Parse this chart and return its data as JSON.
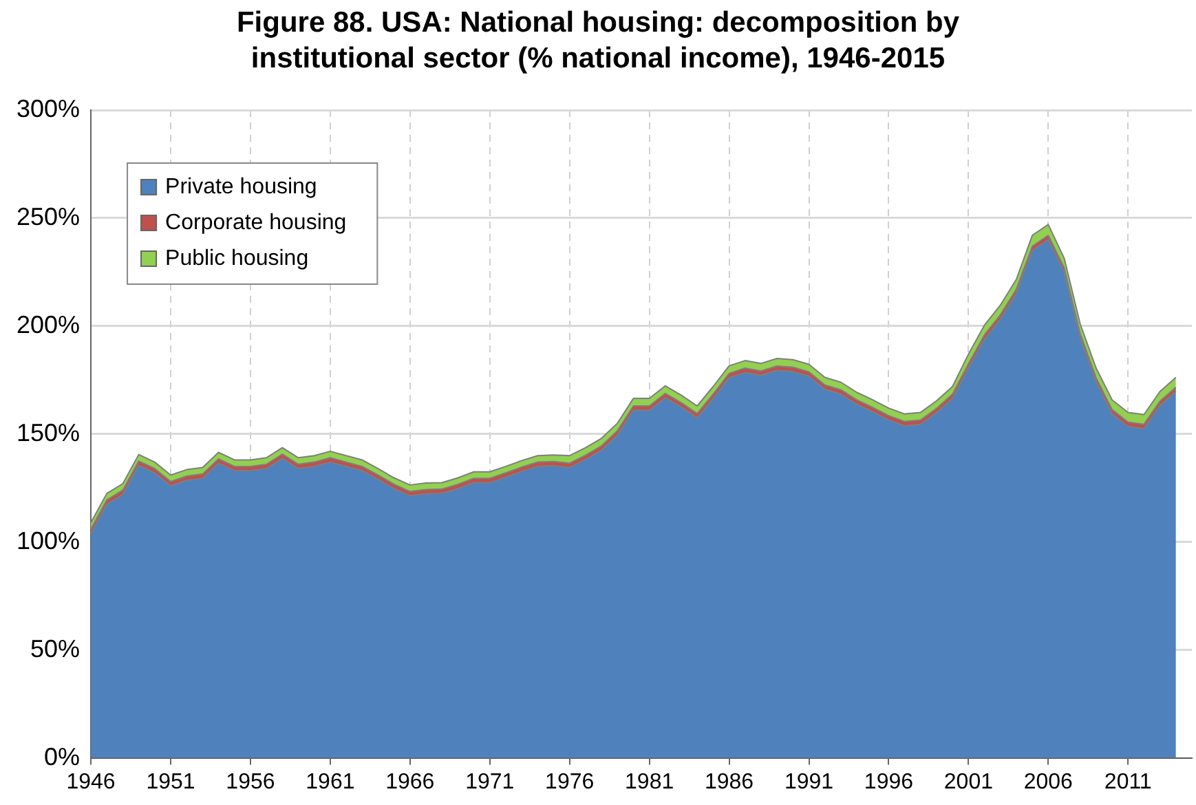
{
  "chart_data": {
    "type": "area",
    "stacked": true,
    "title": "Figure 88. USA: National housing: decomposition by institutional sector (% national income), 1946-2015",
    "categories": [
      "1946",
      null,
      null,
      null,
      null,
      "1951",
      null,
      null,
      null,
      null,
      "1956",
      null,
      null,
      null,
      null,
      "1961",
      null,
      null,
      null,
      null,
      "1966",
      null,
      null,
      null,
      null,
      "1971",
      null,
      null,
      null,
      null,
      "1976",
      null,
      null,
      null,
      null,
      "1981",
      null,
      null,
      null,
      null,
      "1986",
      null,
      null,
      null,
      null,
      "1991",
      null,
      null,
      null,
      null,
      "1996",
      null,
      null,
      null,
      null,
      "2001",
      null,
      null,
      null,
      null,
      "2006",
      null,
      null,
      null,
      null,
      "2011",
      null,
      null,
      null,
      null
    ],
    "series": [
      {
        "name": "Private housing",
        "color": "#4f81bd",
        "values": [
          104,
          117.5,
          122,
          135.5,
          132,
          126,
          128.5,
          129.5,
          136.5,
          133,
          133,
          134,
          138.7,
          134,
          135,
          137,
          135,
          133,
          129,
          124.7,
          121.4,
          122.3,
          122.5,
          124.7,
          127.5,
          127.5,
          130,
          132.7,
          135,
          135.3,
          134.5,
          138.2,
          142.5,
          149.5,
          161,
          161,
          166.8,
          162.5,
          157.5,
          166.5,
          176.1,
          178.5,
          177.2,
          179.5,
          178.9,
          176.8,
          170.7,
          168.5,
          163.8,
          160.3,
          156.5,
          153.8,
          154.5,
          159.9,
          166.5,
          180.5,
          193.9,
          203.2,
          215.1,
          235,
          240,
          224.9,
          194.5,
          174,
          159.3,
          153.5,
          152.5,
          163.2,
          169.7,
          null
        ]
      },
      {
        "name": "Corporate housing",
        "color": "#c0504d",
        "values": [
          2,
          2,
          2,
          2,
          2,
          2,
          2,
          2,
          2,
          2,
          2,
          2,
          2,
          2,
          2,
          2,
          2,
          2,
          2,
          2,
          2,
          2,
          2,
          2,
          2,
          2,
          2,
          2,
          2,
          2,
          2,
          2,
          2,
          2,
          2,
          2,
          2,
          2,
          2,
          2,
          2,
          2,
          2,
          2,
          2,
          2,
          2,
          2,
          2,
          2,
          2,
          2,
          2,
          2,
          2,
          2,
          2,
          2,
          2,
          2,
          2,
          2,
          2,
          2,
          2,
          2,
          2,
          2,
          2,
          null
        ]
      },
      {
        "name": "Public housing",
        "color": "#92d050",
        "values": [
          3,
          3,
          3,
          3,
          3,
          3,
          3,
          3,
          3,
          3,
          3,
          3,
          3,
          3,
          3,
          3,
          3,
          3,
          3,
          3,
          3,
          3,
          3,
          3,
          3,
          3,
          3,
          3,
          3,
          3,
          3.5,
          3.5,
          3.5,
          3.5,
          3.5,
          3.5,
          3.5,
          3.5,
          3.5,
          3.5,
          3.5,
          3.5,
          3.5,
          3.5,
          3.5,
          3.5,
          3.5,
          3.5,
          3.5,
          3.5,
          3.5,
          3.5,
          3.5,
          3.5,
          3.5,
          4.5,
          4.5,
          4.5,
          4.5,
          5,
          5,
          4.5,
          4.5,
          4.5,
          4.5,
          4.5,
          4.5,
          4.5,
          4.5,
          null
        ]
      }
    ],
    "ylim": [
      0,
      300
    ],
    "yticks": [
      {
        "value": 0,
        "label": "0%"
      },
      {
        "value": 50,
        "label": "50%"
      },
      {
        "value": 100,
        "label": "100%"
      },
      {
        "value": 150,
        "label": "150%"
      },
      {
        "value": 200,
        "label": "200%"
      },
      {
        "value": 250,
        "label": "250%"
      },
      {
        "value": 300,
        "label": "300%"
      }
    ],
    "grid": true,
    "legend": "top left"
  }
}
